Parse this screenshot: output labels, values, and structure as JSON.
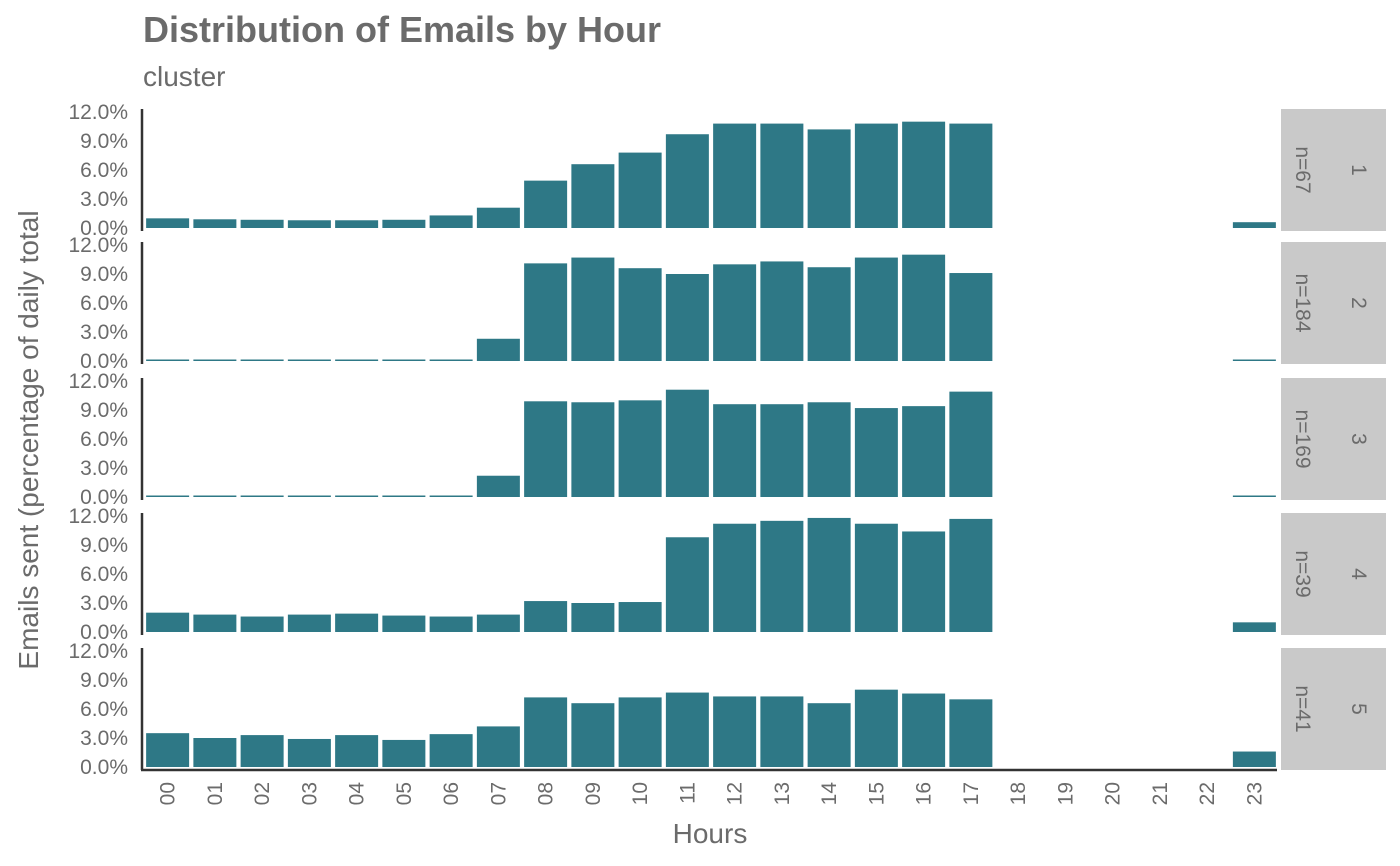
{
  "chart_data": {
    "type": "bar",
    "title": "Distribution of Emails by Hour",
    "subtitle": "cluster",
    "xlabel": "Hours",
    "ylabel": "Emails sent (percentage of daily total",
    "categories": [
      "00",
      "01",
      "02",
      "03",
      "04",
      "05",
      "06",
      "07",
      "08",
      "09",
      "10",
      "11",
      "12",
      "13",
      "14",
      "15",
      "16",
      "17",
      "18",
      "19",
      "20",
      "21",
      "22",
      "23"
    ],
    "y_ticks": [
      "0.0%",
      "3.0%",
      "6.0%",
      "9.0%",
      "12.0%"
    ],
    "ylim": [
      0,
      12
    ],
    "facet": "cluster",
    "series": [
      {
        "cluster": "1",
        "n": "n=67",
        "values": [
          1.0,
          0.9,
          0.85,
          0.8,
          0.8,
          0.85,
          1.3,
          2.1,
          4.9,
          6.6,
          7.8,
          9.7,
          10.8,
          10.8,
          10.2,
          10.8,
          11.0,
          10.8,
          0,
          0,
          0,
          0,
          0,
          0.6
        ]
      },
      {
        "cluster": "2",
        "n": "n=184",
        "values": [
          0.1,
          0.1,
          0.1,
          0.1,
          0.1,
          0.1,
          0.1,
          2.3,
          10.1,
          10.7,
          9.6,
          9.0,
          10.0,
          10.3,
          9.7,
          10.7,
          11.0,
          9.1,
          0,
          0,
          0,
          0,
          0,
          0.15
        ]
      },
      {
        "cluster": "3",
        "n": "n=169",
        "values": [
          0.1,
          0.1,
          0.1,
          0.1,
          0.1,
          0.1,
          0.1,
          2.2,
          9.9,
          9.8,
          10.0,
          11.1,
          9.6,
          9.6,
          9.8,
          9.2,
          9.4,
          10.9,
          0,
          0,
          0,
          0,
          0,
          0.15
        ]
      },
      {
        "cluster": "4",
        "n": "n=39",
        "values": [
          2.0,
          1.8,
          1.6,
          1.8,
          1.9,
          1.7,
          1.6,
          1.8,
          3.2,
          3.0,
          3.1,
          9.8,
          11.2,
          11.5,
          11.8,
          11.2,
          10.4,
          11.7,
          0,
          0,
          0,
          0,
          0,
          1.0
        ]
      },
      {
        "cluster": "5",
        "n": "n=41",
        "values": [
          3.5,
          3.0,
          3.3,
          2.9,
          3.3,
          2.8,
          3.4,
          4.2,
          7.2,
          6.6,
          7.2,
          7.7,
          7.3,
          7.3,
          6.6,
          8.0,
          7.6,
          7.0,
          0,
          0,
          0,
          0,
          0,
          1.6
        ]
      }
    ],
    "colors": {
      "bar": "#2e7886",
      "strip": "#c9c9c9",
      "text": "#6b6b6b",
      "axis": "#333333"
    },
    "legend": "none",
    "grid": false
  }
}
